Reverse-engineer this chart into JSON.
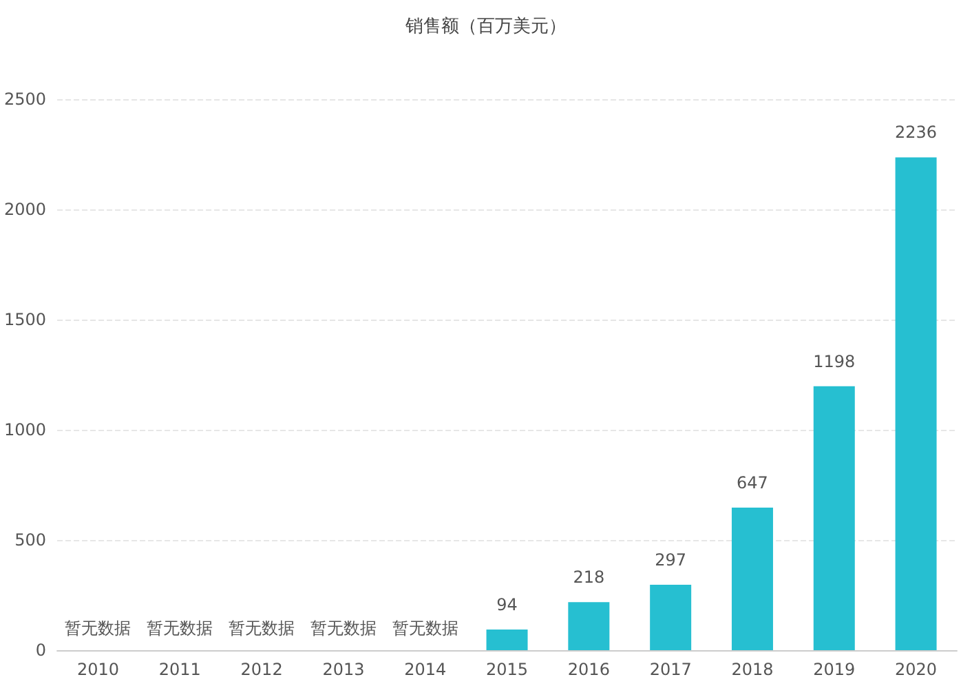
{
  "chart_data": {
    "type": "bar",
    "title": "销售额（百万美元）",
    "categories": [
      "2010",
      "2011",
      "2012",
      "2013",
      "2014",
      "2015",
      "2016",
      "2017",
      "2018",
      "2019",
      "2020"
    ],
    "values": [
      null,
      null,
      null,
      null,
      null,
      94,
      218,
      297,
      647,
      1198,
      2236
    ],
    "value_labels": [
      "暂无数据",
      "暂无数据",
      "暂无数据",
      "暂无数据",
      "暂无数据",
      "94",
      "218",
      "297",
      "647",
      "1198",
      "2236"
    ],
    "color": "#26bfd1",
    "ylim": [
      0,
      2500
    ],
    "yticks": [
      0,
      500,
      1000,
      1500,
      2000,
      2500
    ],
    "grid": "y"
  }
}
